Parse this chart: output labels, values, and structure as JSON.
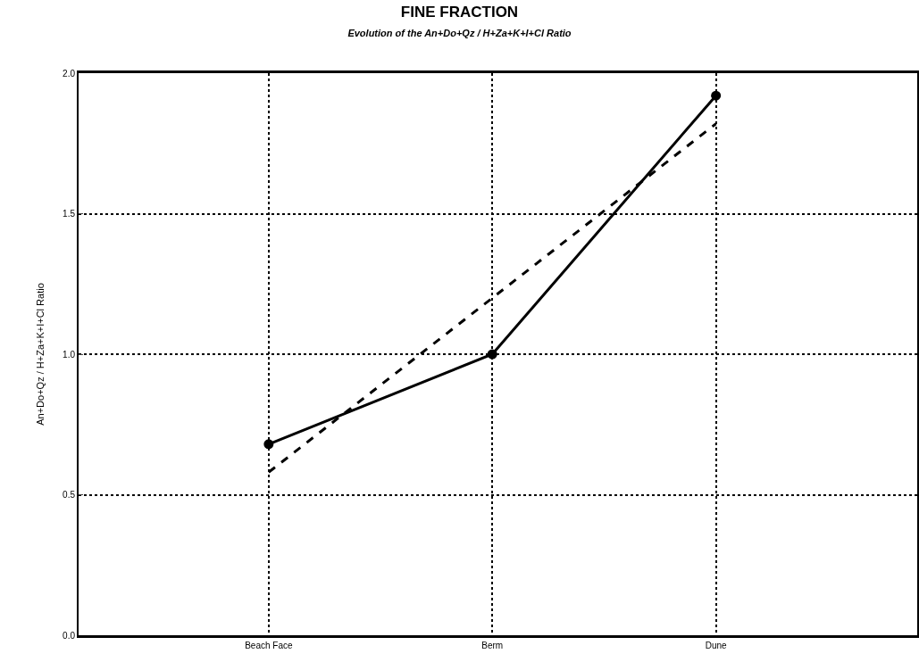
{
  "chart_data": {
    "type": "line",
    "title": "FINE FRACTION",
    "subtitle": "Evolution of the An+Do+Qz / H+Za+K+I+Cl Ratio",
    "ylabel": "An+Do+Qz / H+Za+K+I+Cl Ratio",
    "categories": [
      "Beach Face",
      "Berm",
      "Dune"
    ],
    "series": [
      {
        "color": "#000000",
        "values": [
          0.68,
          1.0,
          1.92
        ],
        "marker": "circle",
        "line_style": "solid"
      },
      {
        "type": "line",
        "color": "#000000",
        "values": [
          0.58,
          1.2,
          1.82
        ],
        "marker": "none",
        "line_style": "dashed"
      }
    ],
    "ylim": [
      0,
      2
    ],
    "yticks": [
      {
        "value": 0,
        "label": "0.0"
      },
      {
        "value": 0.5,
        "label": "0.5"
      },
      {
        "value": 1,
        "label": "1.0"
      },
      {
        "value": 1.5,
        "label": "1.5"
      },
      {
        "value": 2,
        "label": "2.0"
      }
    ],
    "grid": true
  }
}
